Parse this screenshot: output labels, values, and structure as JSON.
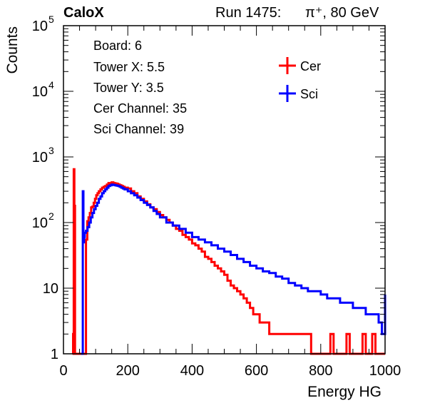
{
  "header": {
    "brand": "CaloX",
    "run_label": "Run 1475:",
    "particle": "π⁺, 80 GeV"
  },
  "info_box": [
    "Board: 6",
    "Tower X: 5.5",
    "Tower Y: 3.5",
    "Cer Channel: 35",
    "Sci Channel: 39"
  ],
  "colors": {
    "cer": "#ff0000",
    "sci": "#0000ff",
    "axis": "#000000"
  },
  "chart_data": {
    "type": "line",
    "histogram_style": "step",
    "title": "",
    "xlabel": "Energy HG",
    "ylabel": "Counts",
    "xlim": [
      0,
      1000
    ],
    "ylim": [
      1,
      100000
    ],
    "yscale": "log",
    "x_ticks": [
      0,
      200,
      400,
      600,
      800,
      1000
    ],
    "y_ticks": [
      {
        "value": 1,
        "label": "1"
      },
      {
        "value": 10,
        "label": "10"
      },
      {
        "value": 100,
        "base": "10",
        "exp": "2"
      },
      {
        "value": 1000,
        "base": "10",
        "exp": "3"
      },
      {
        "value": 10000,
        "base": "10",
        "exp": "4"
      },
      {
        "value": 100000,
        "base": "10",
        "exp": "5"
      }
    ],
    "grid": false,
    "legend_position": "top-right",
    "series": [
      {
        "name": "Cer",
        "color": "#ff0000",
        "points": [
          [
            28,
            1
          ],
          [
            30,
            2
          ],
          [
            32,
            650
          ],
          [
            34,
            180
          ],
          [
            36,
            1
          ],
          [
            40,
            1
          ],
          [
            50,
            1
          ],
          [
            55,
            1
          ],
          [
            58,
            1
          ],
          [
            62,
            1
          ],
          [
            66,
            1
          ],
          [
            70,
            55
          ],
          [
            74,
            105
          ],
          [
            78,
            120
          ],
          [
            82,
            140
          ],
          [
            86,
            170
          ],
          [
            90,
            175
          ],
          [
            94,
            200
          ],
          [
            98,
            230
          ],
          [
            102,
            260
          ],
          [
            106,
            280
          ],
          [
            110,
            300
          ],
          [
            115,
            320
          ],
          [
            120,
            340
          ],
          [
            125,
            350
          ],
          [
            130,
            360
          ],
          [
            135,
            380
          ],
          [
            140,
            400
          ],
          [
            145,
            390
          ],
          [
            150,
            410
          ],
          [
            155,
            400
          ],
          [
            160,
            395
          ],
          [
            165,
            390
          ],
          [
            170,
            380
          ],
          [
            175,
            370
          ],
          [
            180,
            360
          ],
          [
            185,
            350
          ],
          [
            190,
            340
          ],
          [
            200,
            330
          ],
          [
            210,
            300
          ],
          [
            220,
            280
          ],
          [
            230,
            250
          ],
          [
            240,
            230
          ],
          [
            250,
            210
          ],
          [
            260,
            190
          ],
          [
            270,
            170
          ],
          [
            280,
            160
          ],
          [
            290,
            145
          ],
          [
            300,
            130
          ],
          [
            310,
            120
          ],
          [
            320,
            110
          ],
          [
            330,
            100
          ],
          [
            340,
            90
          ],
          [
            350,
            80
          ],
          [
            360,
            75
          ],
          [
            370,
            65
          ],
          [
            380,
            60
          ],
          [
            390,
            55
          ],
          [
            400,
            48
          ],
          [
            410,
            45
          ],
          [
            420,
            40
          ],
          [
            430,
            36
          ],
          [
            440,
            30
          ],
          [
            450,
            28
          ],
          [
            460,
            25
          ],
          [
            470,
            22
          ],
          [
            480,
            20
          ],
          [
            490,
            18
          ],
          [
            500,
            16
          ],
          [
            510,
            13
          ],
          [
            520,
            11
          ],
          [
            530,
            10
          ],
          [
            540,
            9
          ],
          [
            550,
            8
          ],
          [
            560,
            7
          ],
          [
            570,
            6
          ],
          [
            580,
            5
          ],
          [
            590,
            4
          ],
          [
            600,
            4
          ],
          [
            610,
            3
          ],
          [
            620,
            3
          ],
          [
            630,
            3
          ],
          [
            640,
            2
          ],
          [
            650,
            2
          ],
          [
            660,
            2
          ],
          [
            670,
            2
          ],
          [
            680,
            2
          ],
          [
            690,
            2
          ],
          [
            700,
            2
          ],
          [
            710,
            2
          ],
          [
            720,
            2
          ],
          [
            730,
            2
          ],
          [
            740,
            2
          ],
          [
            750,
            2
          ],
          [
            760,
            2
          ],
          [
            770,
            1
          ],
          [
            780,
            1
          ],
          [
            790,
            1
          ],
          [
            800,
            1
          ],
          [
            810,
            1
          ],
          [
            820,
            1
          ],
          [
            830,
            2
          ],
          [
            840,
            1
          ],
          [
            850,
            1
          ],
          [
            860,
            1
          ],
          [
            870,
            1
          ],
          [
            880,
            2
          ],
          [
            890,
            1
          ],
          [
            900,
            1
          ],
          [
            910,
            1
          ],
          [
            920,
            1
          ],
          [
            930,
            2
          ],
          [
            940,
            1
          ],
          [
            950,
            1
          ],
          [
            960,
            2
          ],
          [
            970,
            1
          ],
          [
            980,
            1
          ],
          [
            990,
            1
          ],
          [
            1000,
            1
          ]
        ]
      },
      {
        "name": "Sci",
        "color": "#0000ff",
        "points": [
          [
            55,
            1
          ],
          [
            58,
            1
          ],
          [
            60,
            300
          ],
          [
            62,
            50
          ],
          [
            64,
            60
          ],
          [
            66,
            70
          ],
          [
            70,
            75
          ],
          [
            75,
            85
          ],
          [
            80,
            100
          ],
          [
            85,
            120
          ],
          [
            90,
            140
          ],
          [
            95,
            160
          ],
          [
            100,
            180
          ],
          [
            105,
            200
          ],
          [
            110,
            230
          ],
          [
            115,
            250
          ],
          [
            120,
            280
          ],
          [
            125,
            300
          ],
          [
            130,
            320
          ],
          [
            135,
            340
          ],
          [
            140,
            360
          ],
          [
            145,
            370
          ],
          [
            150,
            380
          ],
          [
            155,
            375
          ],
          [
            160,
            370
          ],
          [
            165,
            365
          ],
          [
            170,
            360
          ],
          [
            175,
            350
          ],
          [
            180,
            340
          ],
          [
            185,
            330
          ],
          [
            190,
            320
          ],
          [
            200,
            300
          ],
          [
            210,
            280
          ],
          [
            220,
            260
          ],
          [
            230,
            240
          ],
          [
            240,
            220
          ],
          [
            250,
            200
          ],
          [
            260,
            185
          ],
          [
            270,
            170
          ],
          [
            280,
            150
          ],
          [
            290,
            135
          ],
          [
            300,
            120
          ],
          [
            320,
            100
          ],
          [
            340,
            90
          ],
          [
            360,
            80
          ],
          [
            380,
            70
          ],
          [
            400,
            60
          ],
          [
            420,
            55
          ],
          [
            440,
            50
          ],
          [
            460,
            45
          ],
          [
            480,
            40
          ],
          [
            500,
            36
          ],
          [
            520,
            32
          ],
          [
            540,
            28
          ],
          [
            560,
            25
          ],
          [
            580,
            22
          ],
          [
            600,
            20
          ],
          [
            620,
            18
          ],
          [
            640,
            17
          ],
          [
            660,
            15
          ],
          [
            680,
            14
          ],
          [
            700,
            12
          ],
          [
            720,
            11
          ],
          [
            740,
            10
          ],
          [
            760,
            9
          ],
          [
            780,
            9
          ],
          [
            800,
            8
          ],
          [
            820,
            7
          ],
          [
            840,
            7
          ],
          [
            860,
            6
          ],
          [
            880,
            6
          ],
          [
            900,
            5
          ],
          [
            920,
            5
          ],
          [
            940,
            4
          ],
          [
            960,
            4
          ],
          [
            980,
            3
          ],
          [
            990,
            2
          ],
          [
            1000,
            8
          ]
        ]
      }
    ]
  }
}
